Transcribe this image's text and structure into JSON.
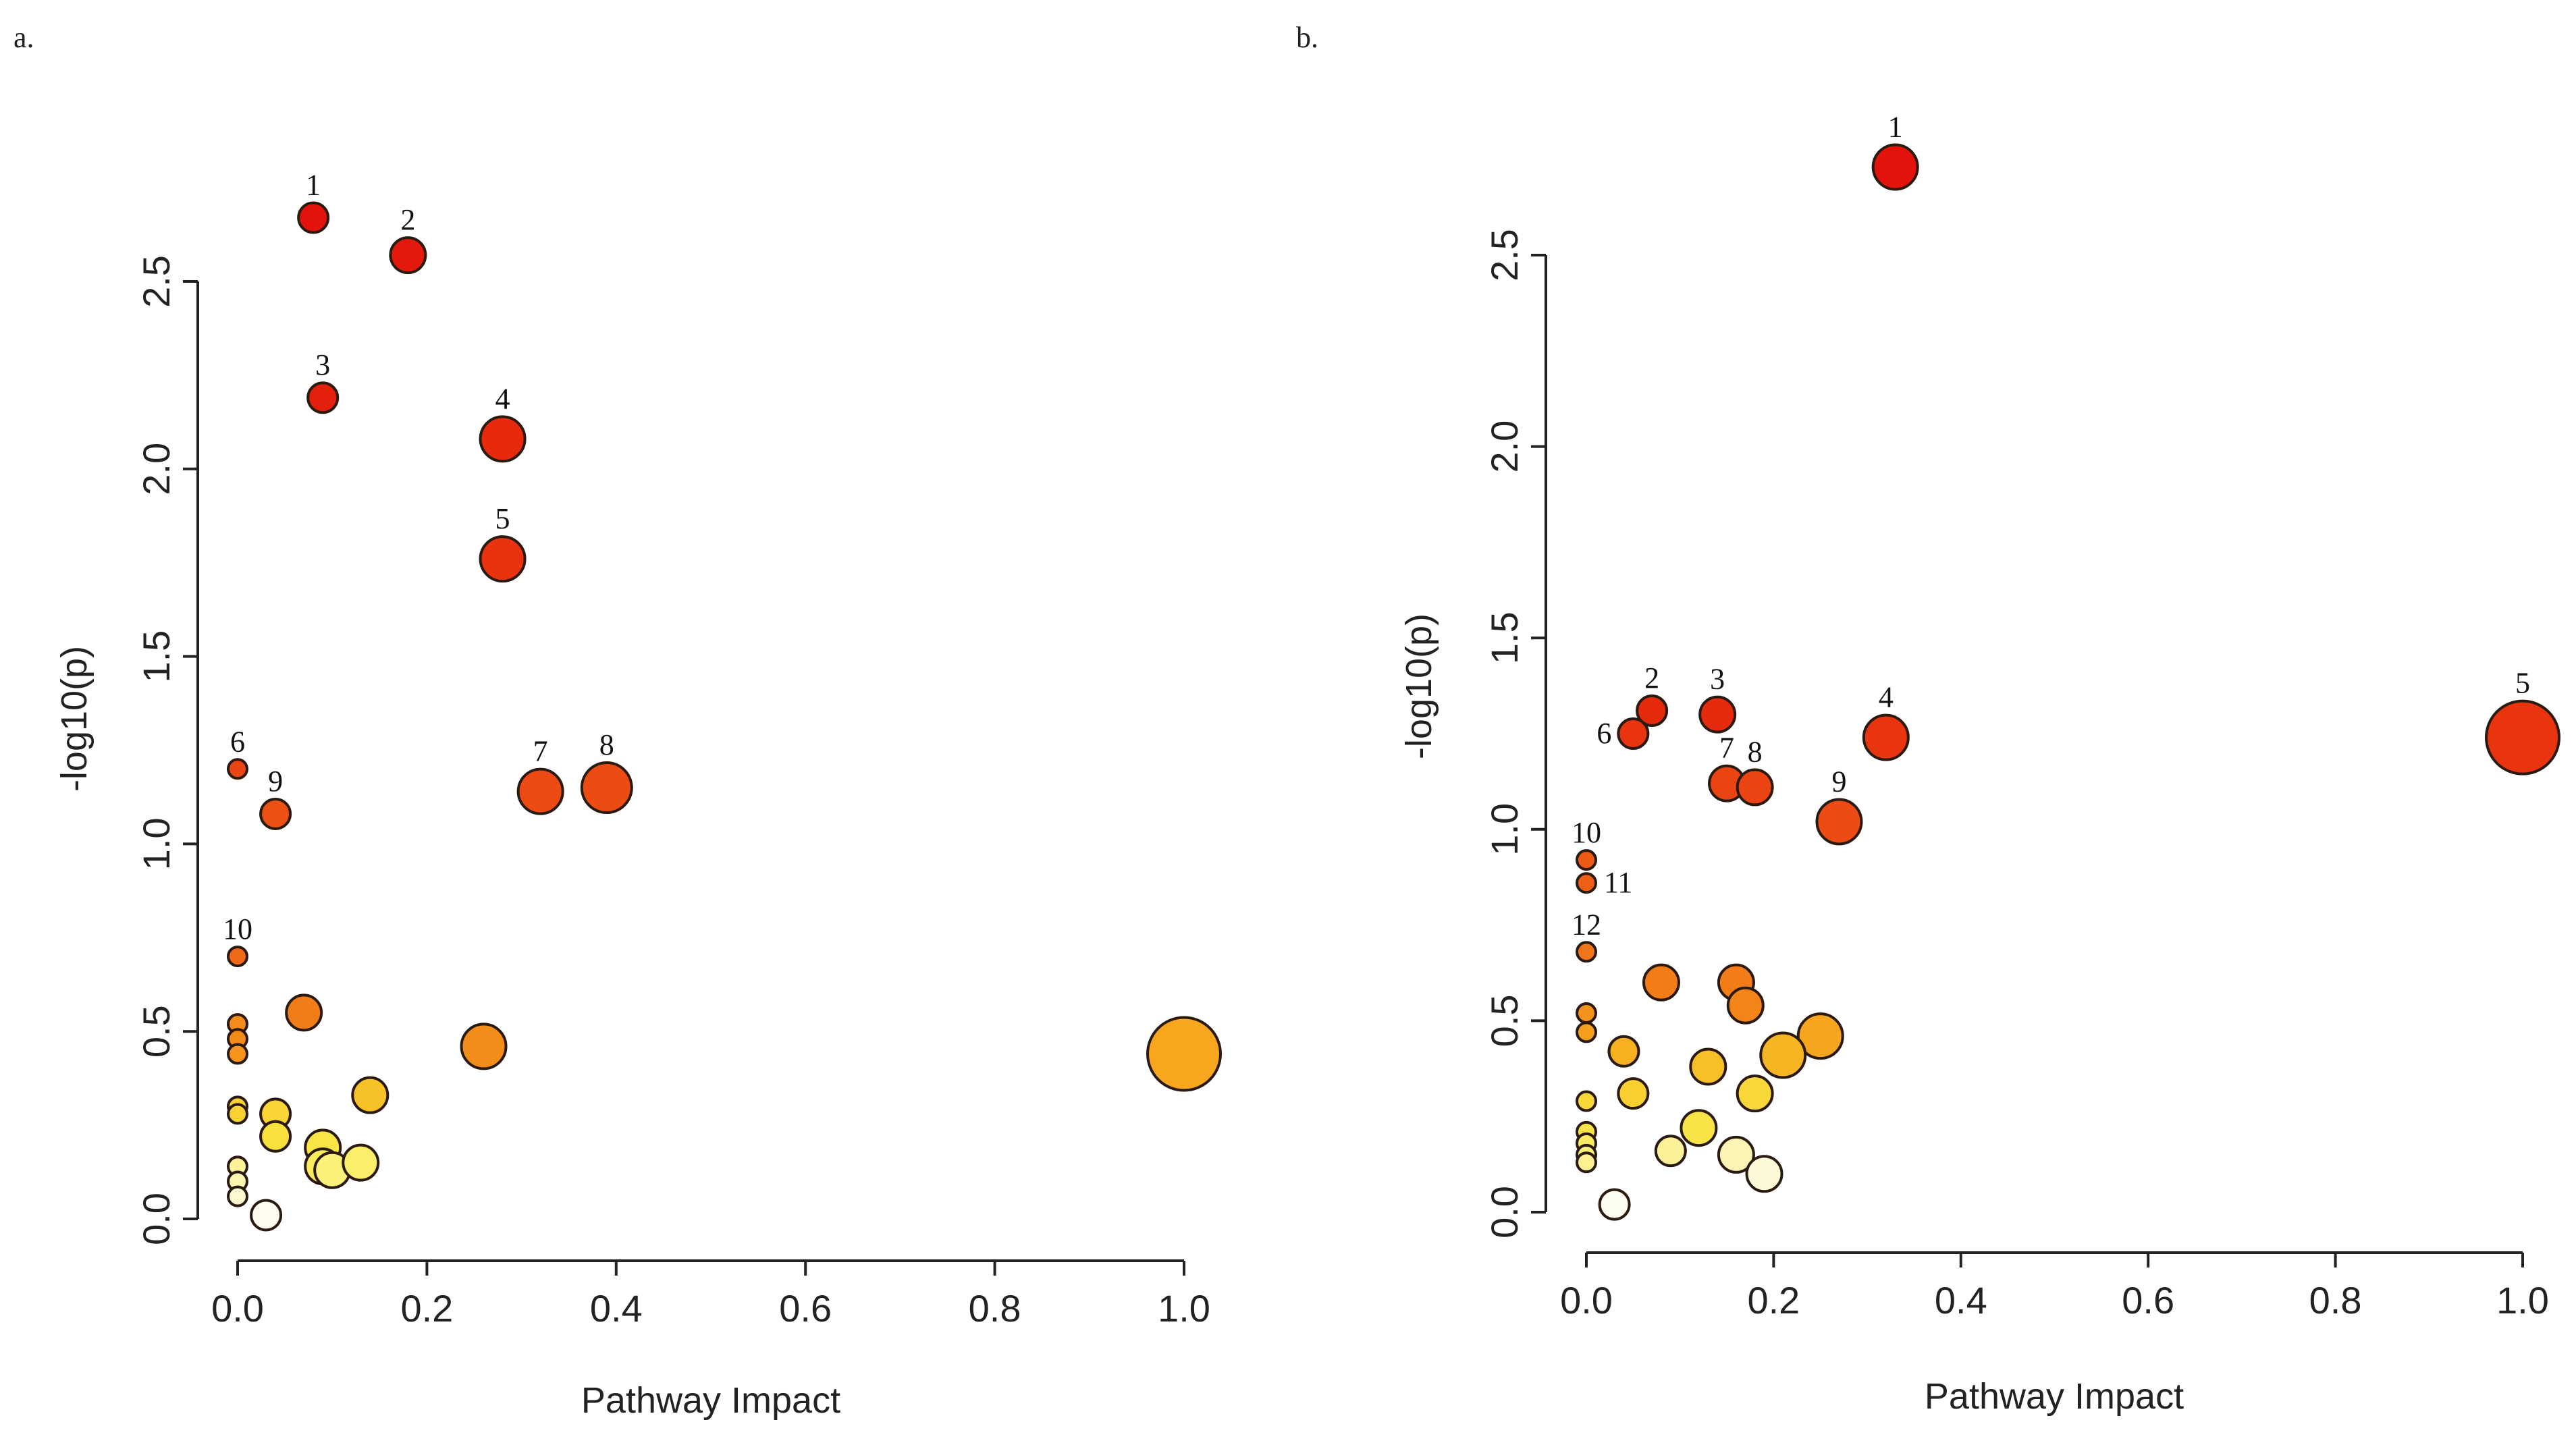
{
  "chart_data": [
    {
      "type": "scatter",
      "panel": "a.",
      "xlabel": "Pathway Impact",
      "ylabel": "-log10(p)",
      "xlim": [
        0,
        1.0
      ],
      "ylim": [
        0,
        2.5
      ],
      "xticks": [
        "0.0",
        "0.2",
        "0.4",
        "0.6",
        "0.8",
        "1.0"
      ],
      "yticks": [
        "0.0",
        "0.5",
        "1.0",
        "1.5",
        "2.0",
        "2.5"
      ],
      "points": [
        {
          "x": 0.08,
          "y": 2.67,
          "label": "1",
          "color": "#e3120b",
          "size": 2
        },
        {
          "x": 0.18,
          "y": 2.57,
          "label": "2",
          "color": "#e31a0b",
          "size": 3
        },
        {
          "x": 0.09,
          "y": 2.19,
          "label": "3",
          "color": "#e3200b",
          "size": 2
        },
        {
          "x": 0.28,
          "y": 2.08,
          "label": "4",
          "color": "#e72a0e",
          "size": 4
        },
        {
          "x": 0.28,
          "y": 1.76,
          "label": "5",
          "color": "#e9320f",
          "size": 4
        },
        {
          "x": 0.0,
          "y": 1.2,
          "label": "6",
          "color": "#ea4614",
          "size": 1
        },
        {
          "x": 0.32,
          "y": 1.14,
          "label": "7",
          "color": "#ec4c14",
          "size": 4
        },
        {
          "x": 0.39,
          "y": 1.15,
          "label": "8",
          "color": "#ec4c14",
          "size": 5
        },
        {
          "x": 0.04,
          "y": 1.08,
          "label": "9",
          "color": "#ec5114",
          "size": 2
        },
        {
          "x": 0.0,
          "y": 0.7,
          "label": "10",
          "color": "#ef6a16",
          "size": 1
        },
        {
          "x": 0.0,
          "y": 0.52,
          "label": "",
          "color": "#f48a1a",
          "size": 1
        },
        {
          "x": 0.0,
          "y": 0.48,
          "label": "",
          "color": "#f48a1a",
          "size": 1
        },
        {
          "x": 0.0,
          "y": 0.44,
          "label": "",
          "color": "#f5951b",
          "size": 1
        },
        {
          "x": 0.07,
          "y": 0.55,
          "label": "",
          "color": "#f07d18",
          "size": 3
        },
        {
          "x": 0.26,
          "y": 0.46,
          "label": "",
          "color": "#f28c1a",
          "size": 4
        },
        {
          "x": 1.0,
          "y": 0.44,
          "label": "",
          "color": "#f7a61d",
          "size": 7
        },
        {
          "x": 0.14,
          "y": 0.33,
          "label": "",
          "color": "#f6c227",
          "size": 3
        },
        {
          "x": 0.0,
          "y": 0.3,
          "label": "",
          "color": "#f7d230",
          "size": 1
        },
        {
          "x": 0.0,
          "y": 0.28,
          "label": "",
          "color": "#f7d230",
          "size": 1
        },
        {
          "x": 0.04,
          "y": 0.28,
          "label": "",
          "color": "#f8d534",
          "size": 2
        },
        {
          "x": 0.04,
          "y": 0.22,
          "label": "",
          "color": "#f8e13c",
          "size": 2
        },
        {
          "x": 0.09,
          "y": 0.19,
          "label": "",
          "color": "#f9e545",
          "size": 3
        },
        {
          "x": 0.09,
          "y": 0.14,
          "label": "",
          "color": "#faec5c",
          "size": 3
        },
        {
          "x": 0.1,
          "y": 0.13,
          "label": "",
          "color": "#fbf07a",
          "size": 3
        },
        {
          "x": 0.13,
          "y": 0.15,
          "label": "",
          "color": "#faee6a",
          "size": 3
        },
        {
          "x": 0.0,
          "y": 0.14,
          "label": "",
          "color": "#fbf196",
          "size": 1
        },
        {
          "x": 0.0,
          "y": 0.1,
          "label": "",
          "color": "#fcf5b0",
          "size": 1
        },
        {
          "x": 0.0,
          "y": 0.06,
          "label": "",
          "color": "#fdf8d0",
          "size": 1
        },
        {
          "x": 0.03,
          "y": 0.01,
          "label": "",
          "color": "#fefdf0",
          "size": 2
        }
      ]
    },
    {
      "type": "scatter",
      "panel": "b.",
      "xlabel": "Pathway Impact",
      "ylabel": "-log10(p)",
      "xlim": [
        0,
        1.0
      ],
      "ylim": [
        0,
        2.5
      ],
      "xticks": [
        "0.0",
        "0.2",
        "0.4",
        "0.6",
        "0.8",
        "1.0"
      ],
      "yticks": [
        "0.0",
        "0.5",
        "1.0",
        "1.5",
        "2.0",
        "2.5"
      ],
      "points": [
        {
          "x": 0.33,
          "y": 2.73,
          "label": "1",
          "color": "#e3120b",
          "size": 4
        },
        {
          "x": 0.07,
          "y": 1.31,
          "label": "2",
          "color": "#e52a0e",
          "size": 2
        },
        {
          "x": 0.14,
          "y": 1.3,
          "label": "3",
          "color": "#e52a0e",
          "size": 3
        },
        {
          "x": 0.32,
          "y": 1.24,
          "label": "4",
          "color": "#e8340f",
          "size": 4
        },
        {
          "x": 1.0,
          "y": 1.24,
          "label": "5",
          "color": "#e8340f",
          "size": 7
        },
        {
          "x": 0.05,
          "y": 1.25,
          "label": "6",
          "color": "#e8340f",
          "size": 2
        },
        {
          "x": 0.15,
          "y": 1.12,
          "label": "7",
          "color": "#eb4413",
          "size": 3
        },
        {
          "x": 0.18,
          "y": 1.11,
          "label": "8",
          "color": "#eb4413",
          "size": 3
        },
        {
          "x": 0.27,
          "y": 1.02,
          "label": "9",
          "color": "#ec4c14",
          "size": 4
        },
        {
          "x": 0.0,
          "y": 0.92,
          "label": "10",
          "color": "#ed5a15",
          "size": 1
        },
        {
          "x": 0.0,
          "y": 0.86,
          "label": "11",
          "color": "#ee5f15",
          "size": 1
        },
        {
          "x": 0.0,
          "y": 0.68,
          "label": "12",
          "color": "#f07418",
          "size": 1
        },
        {
          "x": 0.08,
          "y": 0.6,
          "label": "",
          "color": "#f17c18",
          "size": 3
        },
        {
          "x": 0.16,
          "y": 0.6,
          "label": "",
          "color": "#f17c18",
          "size": 3
        },
        {
          "x": 0.17,
          "y": 0.54,
          "label": "",
          "color": "#f28418",
          "size": 3
        },
        {
          "x": 0.0,
          "y": 0.52,
          "label": "",
          "color": "#f4931b",
          "size": 1
        },
        {
          "x": 0.0,
          "y": 0.47,
          "label": "",
          "color": "#f5a01d",
          "size": 1
        },
        {
          "x": 0.25,
          "y": 0.46,
          "label": "",
          "color": "#f5a51e",
          "size": 4
        },
        {
          "x": 0.04,
          "y": 0.42,
          "label": "",
          "color": "#f6b020",
          "size": 2
        },
        {
          "x": 0.21,
          "y": 0.41,
          "label": "",
          "color": "#f6b522",
          "size": 4
        },
        {
          "x": 0.13,
          "y": 0.38,
          "label": "",
          "color": "#f7c026",
          "size": 3
        },
        {
          "x": 0.05,
          "y": 0.31,
          "label": "",
          "color": "#f8d030",
          "size": 2
        },
        {
          "x": 0.18,
          "y": 0.31,
          "label": "",
          "color": "#f8d838",
          "size": 3
        },
        {
          "x": 0.0,
          "y": 0.29,
          "label": "",
          "color": "#f8d838",
          "size": 1
        },
        {
          "x": 0.12,
          "y": 0.22,
          "label": "",
          "color": "#f9e448",
          "size": 3
        },
        {
          "x": 0.0,
          "y": 0.21,
          "label": "",
          "color": "#f9e448",
          "size": 1
        },
        {
          "x": 0.0,
          "y": 0.18,
          "label": "",
          "color": "#faea60",
          "size": 1
        },
        {
          "x": 0.0,
          "y": 0.15,
          "label": "",
          "color": "#fbef80",
          "size": 1
        },
        {
          "x": 0.0,
          "y": 0.13,
          "label": "",
          "color": "#fbf190",
          "size": 1
        },
        {
          "x": 0.09,
          "y": 0.16,
          "label": "",
          "color": "#fbf198",
          "size": 2
        },
        {
          "x": 0.16,
          "y": 0.15,
          "label": "",
          "color": "#fcf4b4",
          "size": 3
        },
        {
          "x": 0.19,
          "y": 0.1,
          "label": "",
          "color": "#fdf8d6",
          "size": 3
        },
        {
          "x": 0.03,
          "y": 0.02,
          "label": "",
          "color": "#fefdf2",
          "size": 2
        }
      ]
    }
  ]
}
